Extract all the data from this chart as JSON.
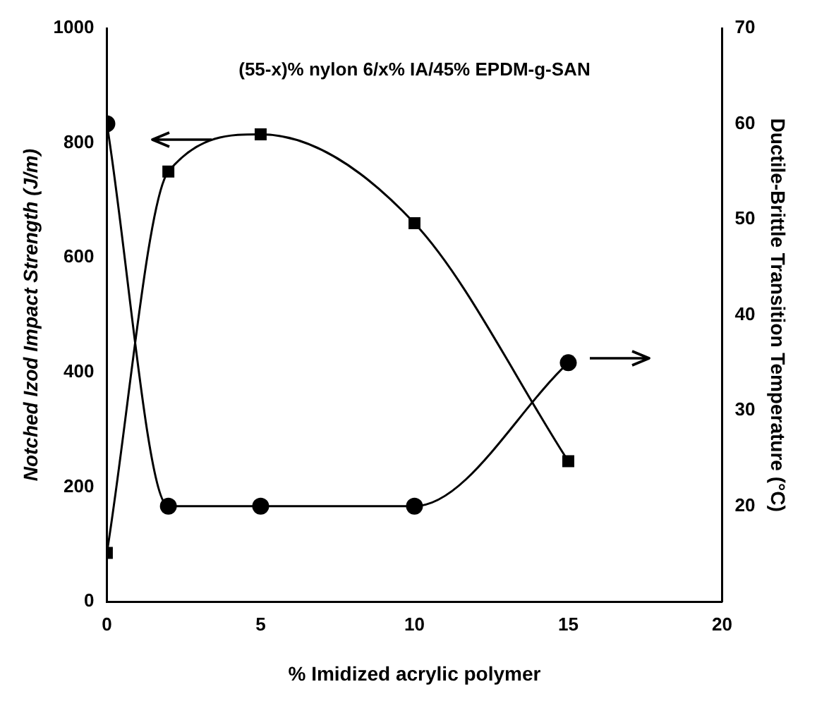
{
  "chart_data": {
    "type": "line",
    "xlabel": "% Imidized acrylic polymer",
    "ylabel": "Notched Izod Impact Strength (J/m)",
    "y2label": "Ductile-Brittle Transition Temperature (°C)",
    "annotations": [
      "(55-x)% nylon 6/x% IA/45% EPDM-g-SAN"
    ],
    "x": [
      0,
      2,
      5,
      10,
      15
    ],
    "series": [
      {
        "color": "#000000",
        "marker": "square",
        "values": [
          85,
          750,
          815,
          660,
          245
        ]
      },
      {
        "color": "#000000",
        "marker": "circle",
        "axis": "y2",
        "values": [
          60,
          20,
          20,
          20,
          35
        ]
      }
    ],
    "xlim": [
      0,
      20
    ],
    "xticks": [
      0,
      5,
      10,
      15,
      20
    ],
    "ylim": [
      0,
      1000
    ],
    "yticks": [
      0,
      200,
      400,
      600,
      800,
      1000
    ],
    "y2lim": [
      10,
      70
    ],
    "y2ticks": [
      20,
      30,
      40,
      50,
      60,
      70
    ],
    "grid": false,
    "legend": false
  }
}
